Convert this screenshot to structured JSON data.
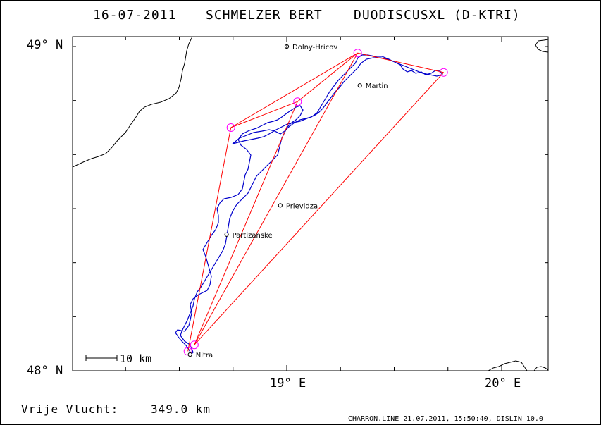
{
  "header": {
    "date": "16-07-2011",
    "pilot": "SCHMELZER BERT",
    "glider": "DUODISCUSXL (D-KTRI)"
  },
  "axes": {
    "y_top_label": "49° N",
    "y_bottom_label": "48° N",
    "x_left_label": "19° E",
    "x_right_label": "20° E"
  },
  "map": {
    "lon_range": [
      18.0,
      20.24
    ],
    "lat_range": [
      48.0,
      49.02
    ],
    "cities": [
      {
        "name": "Dolny-Hricov",
        "lon": 19.0,
        "lat": 49.0,
        "symbol": "airfield"
      },
      {
        "name": "Martin",
        "lon": 19.34,
        "lat": 48.88,
        "symbol": "circle"
      },
      {
        "name": "Prievidza",
        "lon": 18.97,
        "lat": 48.51,
        "symbol": "circle"
      },
      {
        "name": "Partizanske",
        "lon": 18.72,
        "lat": 48.42,
        "symbol": "circle"
      },
      {
        "name": "Nitra",
        "lon": 18.55,
        "lat": 48.05,
        "symbol": "circle"
      }
    ],
    "turnpoints": [
      {
        "lon": 18.54,
        "lat": 48.06
      },
      {
        "lon": 18.74,
        "lat": 48.75
      },
      {
        "lon": 19.05,
        "lat": 48.83
      },
      {
        "lon": 19.33,
        "lat": 48.98
      },
      {
        "lon": 19.73,
        "lat": 48.92
      },
      {
        "lon": 18.57,
        "lat": 48.08
      }
    ],
    "scale_label": "10 km",
    "colors": {
      "task": "#ff0000",
      "track": "#0000cc",
      "turnpoint": "#ff00ff",
      "border": "#000000"
    }
  },
  "footer": {
    "free_flight_label": "Vrije Vlucht:",
    "distance": "349.0 km",
    "credits": "CHARRON.LINE 21.07.2011, 15:50:40, DISLIN 10.0"
  }
}
